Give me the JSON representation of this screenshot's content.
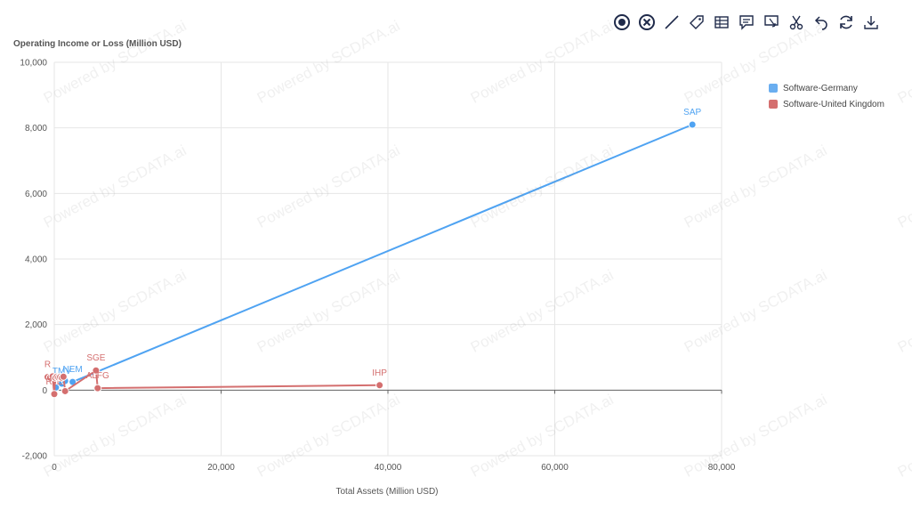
{
  "toolbar": {
    "icons": [
      "pointer-icon",
      "close-circle-icon",
      "line-icon",
      "tag-icon",
      "data-view-icon",
      "comment-icon",
      "flag-icon",
      "scissors-icon",
      "undo-icon",
      "refresh-icon",
      "download-icon"
    ]
  },
  "watermark_text": "Powered by SCDATA.ai",
  "colors": {
    "germany": "#4fa3f2",
    "uk": "#d46f6f",
    "axis": "#666666",
    "grid": "#e6e6e6"
  },
  "chart_data": {
    "type": "line",
    "ylabel": "Operating Income or Loss (Million USD)",
    "xlabel": "Total Assets (Million USD)",
    "xlim": [
      0,
      80000
    ],
    "ylim": [
      -2000,
      10000
    ],
    "x_ticks": [
      "0",
      "20,000",
      "40,000",
      "60,000",
      "80,000"
    ],
    "y_ticks": [
      "-2,000",
      "0",
      "2,000",
      "4,000",
      "6,000",
      "8,000",
      "10,000"
    ],
    "x_tick_values": [
      0,
      20000,
      40000,
      60000,
      80000
    ],
    "y_tick_values": [
      -2000,
      0,
      2000,
      4000,
      6000,
      8000,
      10000
    ],
    "legend_position": "top-right",
    "grid": true,
    "series": [
      {
        "name": "Software-Germany",
        "color": "#4fa3f2",
        "points": [
          {
            "x": 200,
            "y": 80,
            "label": ""
          },
          {
            "x": 900,
            "y": 200,
            "label": "TMV"
          },
          {
            "x": 1300,
            "y": 280,
            "label": ""
          },
          {
            "x": 2200,
            "y": 250,
            "label": "NEM"
          },
          {
            "x": 76500,
            "y": 8100,
            "label": "SAP"
          }
        ]
      },
      {
        "name": "Software-United Kingdom",
        "color": "#d46f6f",
        "points": [
          {
            "x": -800,
            "y": 400,
            "label": "R"
          },
          {
            "x": -500,
            "y": 380,
            "label": ""
          },
          {
            "x": -200,
            "y": 420,
            "label": ""
          },
          {
            "x": 0,
            "y": -120,
            "label": "RJE"
          },
          {
            "x": 100,
            "y": 380,
            "label": ""
          },
          {
            "x": 300,
            "y": 410,
            "label": ""
          },
          {
            "x": 500,
            "y": 390,
            "label": ""
          },
          {
            "x": 700,
            "y": 400,
            "label": ""
          },
          {
            "x": 900,
            "y": 380,
            "label": ""
          },
          {
            "x": 1100,
            "y": 410,
            "label": ""
          },
          {
            "x": 1300,
            "y": -30,
            "label": ""
          },
          {
            "x": 5000,
            "y": 600,
            "label": "SGE"
          },
          {
            "x": 5200,
            "y": 60,
            "label": "ALFG"
          },
          {
            "x": 39000,
            "y": 150,
            "label": "IHP"
          }
        ]
      }
    ]
  }
}
